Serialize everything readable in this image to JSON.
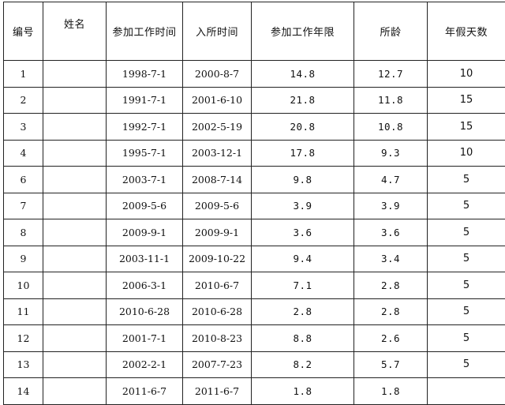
{
  "table": {
    "headers": [
      "编号",
      "姓名",
      "参加工作时间",
      "入所时间",
      "参加工作年限",
      "所龄",
      "年假天数"
    ],
    "rows": [
      {
        "no": "1",
        "name": "",
        "join": "1998-7-1",
        "entry": "2000-8-7",
        "years": "14.8",
        "tenure": "12.7",
        "days": "10"
      },
      {
        "no": "2",
        "name": "",
        "join": "1991-7-1",
        "entry": "2001-6-10",
        "years": "21.8",
        "tenure": "11.8",
        "days": "15"
      },
      {
        "no": "3",
        "name": "",
        "join": "1992-7-1",
        "entry": "2002-5-19",
        "years": "20.8",
        "tenure": "10.8",
        "days": "15"
      },
      {
        "no": "4",
        "name": "",
        "join": "1995-7-1",
        "entry": "2003-12-1",
        "years": "17.8",
        "tenure": "9.3",
        "days": "10"
      },
      {
        "no": "6",
        "name": "",
        "join": "2003-7-1",
        "entry": "2008-7-14",
        "years": "9.8",
        "tenure": "4.7",
        "days": "5"
      },
      {
        "no": "7",
        "name": "",
        "join": "2009-5-6",
        "entry": "2009-5-6",
        "years": "3.9",
        "tenure": "3.9",
        "days": "5"
      },
      {
        "no": "8",
        "name": "",
        "join": "2009-9-1",
        "entry": "2009-9-1",
        "years": "3.6",
        "tenure": "3.6",
        "days": "5"
      },
      {
        "no": "9",
        "name": "",
        "join": "2003-11-1",
        "entry": "2009-10-22",
        "years": "9.4",
        "tenure": "3.4",
        "days": "5"
      },
      {
        "no": "10",
        "name": "",
        "join": "2006-3-1",
        "entry": "2010-6-7",
        "years": "7.1",
        "tenure": "2.8",
        "days": "5"
      },
      {
        "no": "11",
        "name": "",
        "join": "2010-6-28",
        "entry": "2010-6-28",
        "years": "2.8",
        "tenure": "2.8",
        "days": "5"
      },
      {
        "no": "12",
        "name": "",
        "join": "2001-7-1",
        "entry": "2010-8-23",
        "years": "8.8",
        "tenure": "2.6",
        "days": "5"
      },
      {
        "no": "13",
        "name": "",
        "join": "2002-2-1",
        "entry": "2007-7-23",
        "years": "8.2",
        "tenure": "5.7",
        "days": "5"
      },
      {
        "no": "14",
        "name": "",
        "join": "2011-6-7",
        "entry": "2011-6-7",
        "years": "1.8",
        "tenure": "1.8",
        "days": ""
      }
    ]
  }
}
